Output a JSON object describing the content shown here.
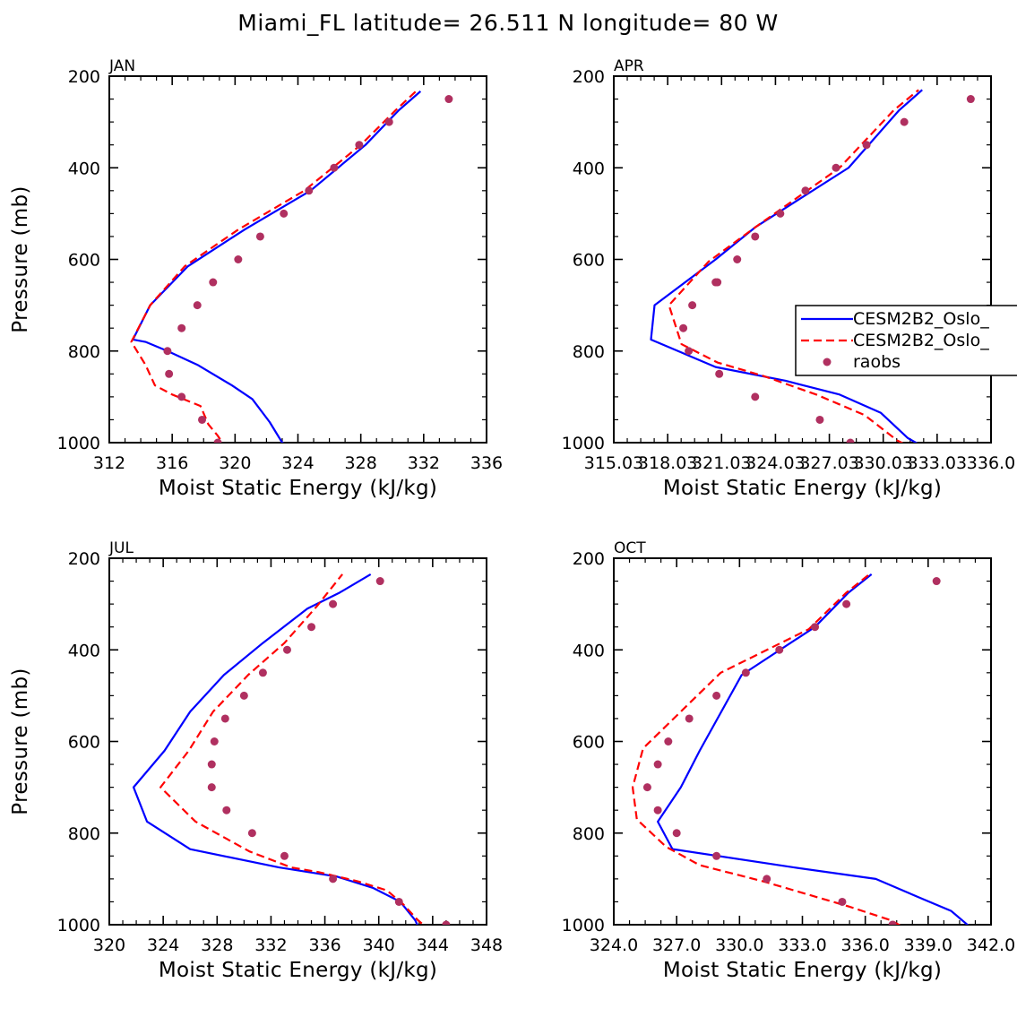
{
  "title": "Miami_FL  latitude= 26.511 N longitude= 80 W",
  "colors": {
    "model1": "#0000ff",
    "model2": "#ff0000",
    "obs": "#b03060"
  },
  "legend": {
    "entries": [
      "CESM2B2_Oslo_",
      "CESM2B2_Oslo_",
      "raobs"
    ],
    "panel": 1,
    "placement": "right-middle"
  },
  "chart_data": [
    {
      "type": "line",
      "month": "JAN",
      "xlabel": "Moist Static Energy (kJ/kg)",
      "ylabel": "Pressure (mb)",
      "xlim": [
        312,
        336
      ],
      "ylim": [
        1000,
        200
      ],
      "xticks": [
        312,
        316,
        320,
        324,
        328,
        332,
        336
      ],
      "xtick_labels": [
        "312",
        "316",
        "320",
        "324",
        "328",
        "332",
        "336"
      ],
      "yticks": [
        200,
        400,
        600,
        800,
        1000
      ],
      "series": [
        {
          "name": "CESM2B2_Oslo_",
          "style": "solid",
          "x": [
            323.6,
            323.0,
            322.2,
            321.1,
            319.8,
            317.6,
            315.7,
            314.3,
            313.5,
            314.6,
            317.0,
            320.6,
            324.8,
            328.3,
            330.4,
            331.8
          ],
          "y": [
            1010,
            1000,
            955,
            905,
            875,
            830,
            800,
            780,
            775,
            700,
            615,
            535,
            450,
            350,
            275,
            233
          ]
        },
        {
          "name": "CESM2B2_Oslo_",
          "style": "dashed",
          "x": [
            319.5,
            318.9,
            318.3,
            317.8,
            316.0,
            314.9,
            314.3,
            313.4,
            314.6,
            316.8,
            320.2,
            324.4,
            328.0,
            330.2,
            331.6
          ],
          "y": [
            1015,
            985,
            960,
            920,
            895,
            875,
            830,
            780,
            700,
            615,
            535,
            450,
            350,
            275,
            230
          ]
        },
        {
          "name": "raobs",
          "style": "markers",
          "x": [
            318.9,
            317.9,
            316.6,
            315.8,
            315.7,
            316.6,
            317.6,
            318.6,
            320.2,
            321.6,
            323.1,
            324.7,
            326.3,
            327.9,
            329.8,
            333.6
          ],
          "y": [
            1000,
            950,
            900,
            850,
            800,
            750,
            700,
            650,
            600,
            550,
            500,
            450,
            400,
            350,
            300,
            250
          ]
        }
      ]
    },
    {
      "type": "line",
      "month": "APR",
      "xlabel": "Moist Static Energy (kJ/kg)",
      "ylabel": "",
      "xlim": [
        315.03,
        336.03
      ],
      "ylim": [
        1000,
        200
      ],
      "xticks": [
        315.03,
        318.03,
        321.03,
        324.03,
        327.03,
        330.03,
        333.03,
        336.03
      ],
      "xtick_labels": [
        "315.03",
        "318.03",
        "321.03",
        "324.03",
        "327.03",
        "330.03",
        "333.03",
        "336.0"
      ],
      "yticks": [
        200,
        400,
        600,
        800,
        1000
      ],
      "series": [
        {
          "name": "CESM2B2_Oslo_",
          "style": "solid",
          "x": [
            332.3,
            331.4,
            329.9,
            327.6,
            324.6,
            320.7,
            317.1,
            317.3,
            320.7,
            322.9,
            328.1,
            330.9,
            332.2
          ],
          "y": [
            1010,
            990,
            935,
            895,
            865,
            835,
            775,
            700,
            600,
            530,
            400,
            275,
            230
          ]
        },
        {
          "name": "CESM2B2_Oslo_",
          "style": "dashed",
          "x": [
            331.8,
            330.8,
            329.0,
            326.3,
            323.4,
            320.8,
            318.8,
            318.1,
            320.3,
            322.9,
            327.6,
            330.6,
            332.0
          ],
          "y": [
            1015,
            995,
            940,
            895,
            855,
            825,
            785,
            700,
            605,
            530,
            400,
            275,
            230
          ]
        },
        {
          "name": "raobs",
          "style": "markers",
          "x": [
            328.2,
            326.5,
            322.9,
            320.9,
            319.2,
            318.9,
            319.4,
            320.8,
            320.7,
            321.9,
            322.9,
            324.3,
            325.7,
            327.4,
            329.1,
            331.2,
            334.9
          ],
          "y": [
            1000,
            950,
            900,
            850,
            800,
            750,
            700,
            650,
            650,
            600,
            550,
            500,
            450,
            400,
            350,
            300,
            250
          ]
        }
      ]
    },
    {
      "type": "line",
      "month": "JUL",
      "xlabel": "Moist Static Energy (kJ/kg)",
      "ylabel": "Pressure (mb)",
      "xlim": [
        320,
        348
      ],
      "ylim": [
        1000,
        200
      ],
      "xticks": [
        320,
        324,
        328,
        332,
        336,
        340,
        344,
        348
      ],
      "xtick_labels": [
        "320",
        "324",
        "328",
        "332",
        "336",
        "340",
        "344",
        "348"
      ],
      "yticks": [
        200,
        400,
        600,
        800,
        1000
      ],
      "series": [
        {
          "name": "CESM2B2_Oslo_",
          "style": "solid",
          "x": [
            343.1,
            342.7,
            341.6,
            339.6,
            336.9,
            332.6,
            326.0,
            322.8,
            321.8,
            324.1,
            326.0,
            328.5,
            331.4,
            334.7,
            337.1,
            339.4
          ],
          "y": [
            1015,
            990,
            950,
            920,
            895,
            875,
            835,
            775,
            700,
            620,
            535,
            455,
            385,
            310,
            275,
            235
          ]
        },
        {
          "name": "CESM2B2_Oslo_",
          "style": "dashed",
          "x": [
            343.9,
            342.9,
            341.8,
            340.6,
            338.4,
            335.5,
            333.5,
            330.4,
            326.4,
            323.8,
            325.9,
            327.7,
            330.3,
            333.0,
            335.4,
            337.3
          ],
          "y": [
            1015,
            990,
            955,
            925,
            905,
            885,
            875,
            840,
            775,
            700,
            620,
            535,
            455,
            385,
            305,
            235
          ]
        },
        {
          "name": "raobs",
          "style": "markers",
          "x": [
            345.0,
            341.5,
            336.6,
            333.0,
            330.6,
            328.7,
            327.6,
            327.6,
            327.8,
            328.6,
            330.0,
            331.4,
            333.2,
            335.0,
            336.6,
            340.1
          ],
          "y": [
            1000,
            950,
            900,
            850,
            800,
            750,
            700,
            650,
            600,
            550,
            500,
            450,
            400,
            350,
            300,
            250
          ]
        }
      ]
    },
    {
      "type": "line",
      "month": "OCT",
      "xlabel": "Moist Static Energy (kJ/kg)",
      "ylabel": "",
      "xlim": [
        324.0,
        342.0
      ],
      "ylim": [
        1000,
        200
      ],
      "xticks": [
        324.0,
        327.0,
        330.0,
        333.0,
        336.0,
        339.0,
        342.0
      ],
      "xtick_labels": [
        "324.0",
        "327.0",
        "330.0",
        "333.0",
        "336.0",
        "339.0",
        "342.0"
      ],
      "yticks": [
        200,
        400,
        600,
        800,
        1000
      ],
      "series": [
        {
          "name": "CESM2B2_Oslo_",
          "style": "solid",
          "x": [
            341.0,
            340.1,
            338.8,
            336.5,
            332.6,
            326.8,
            326.1,
            327.2,
            328.1,
            330.1,
            333.6,
            335.2,
            336.3
          ],
          "y": [
            1005,
            970,
            945,
            900,
            875,
            835,
            775,
            700,
            620,
            455,
            350,
            275,
            235
          ]
        },
        {
          "name": "CESM2B2_Oslo_",
          "style": "dashed",
          "x": [
            338.2,
            337.2,
            335.2,
            331.1,
            328.1,
            326.5,
            325.1,
            324.9,
            325.4,
            329.1,
            333.3,
            335.1,
            336.2
          ],
          "y": [
            1015,
            990,
            960,
            905,
            870,
            830,
            770,
            700,
            615,
            450,
            355,
            275,
            235
          ]
        },
        {
          "name": "raobs",
          "style": "markers",
          "x": [
            337.3,
            334.9,
            331.3,
            328.9,
            327.0,
            326.1,
            325.6,
            326.1,
            326.6,
            327.6,
            328.9,
            330.3,
            331.9,
            333.6,
            335.1,
            339.4
          ],
          "y": [
            1000,
            950,
            900,
            850,
            800,
            750,
            700,
            650,
            600,
            550,
            500,
            450,
            400,
            350,
            300,
            250
          ]
        }
      ]
    }
  ]
}
